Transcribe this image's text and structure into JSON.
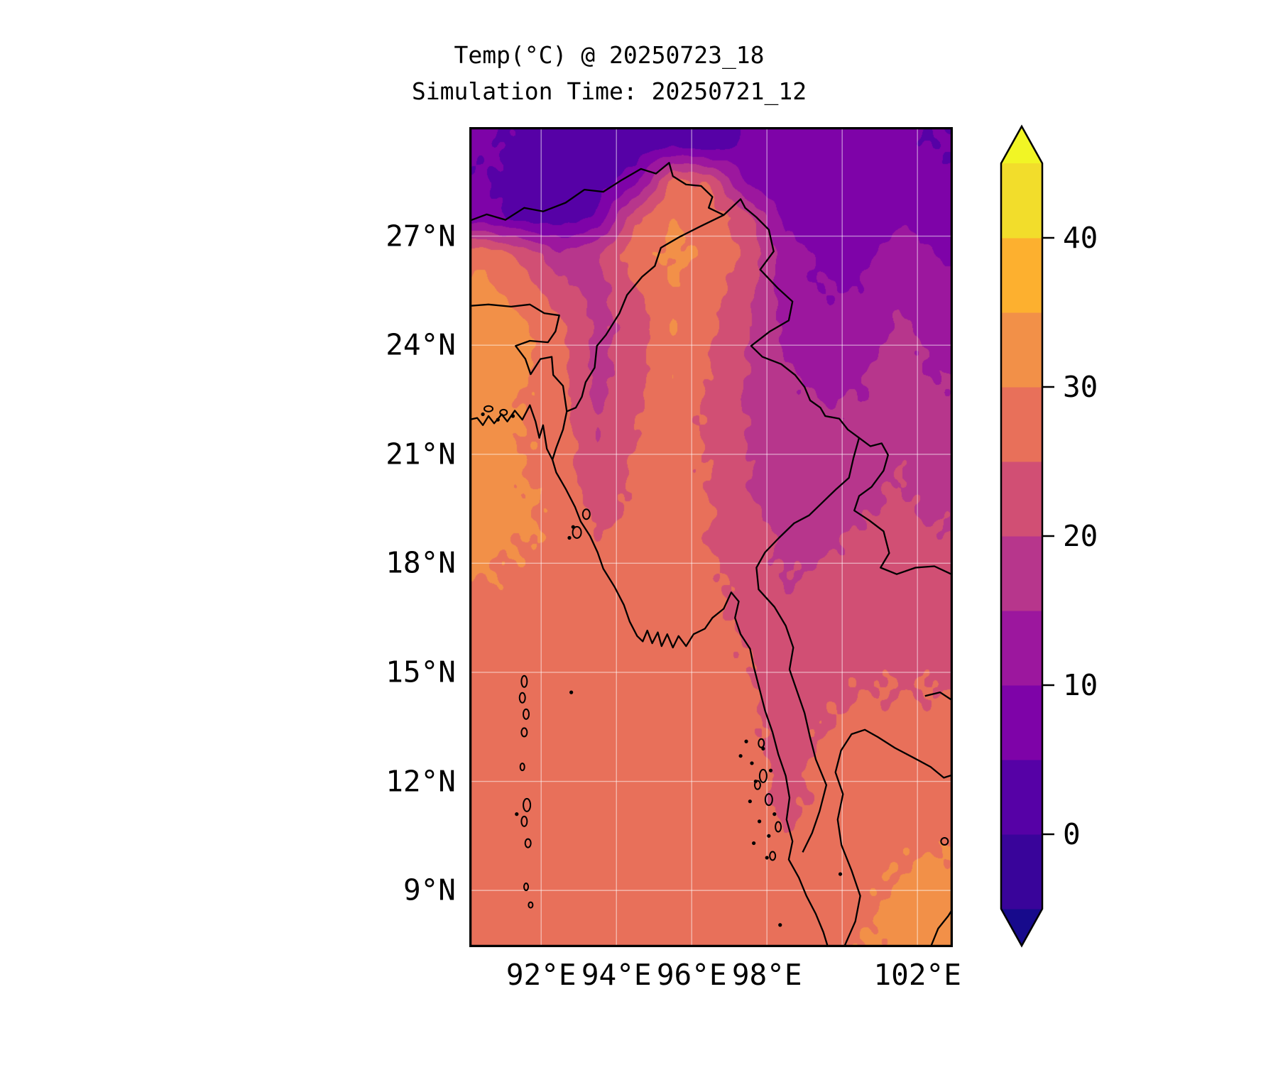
{
  "figure": {
    "title_line1": "Temp(°C) @ 20250723_18",
    "title_line2": "Simulation Time: 20250721_12",
    "background": "#ffffff"
  },
  "axes": {
    "x_ticks": [
      {
        "label": "92°E",
        "lon": 92
      },
      {
        "label": "94°E",
        "lon": 94
      },
      {
        "label": "96°E",
        "lon": 96
      },
      {
        "label": "98°E",
        "lon": 98
      },
      {
        "label": "102°E",
        "lon": 102
      }
    ],
    "x_gridlines": [
      92,
      94,
      96,
      98,
      100,
      102
    ],
    "y_ticks": [
      {
        "label": "27°N",
        "lat": 27
      },
      {
        "label": "24°N",
        "lat": 24
      },
      {
        "label": "21°N",
        "lat": 21
      },
      {
        "label": "18°N",
        "lat": 18
      },
      {
        "label": "15°N",
        "lat": 15
      },
      {
        "label": "12°N",
        "lat": 12
      },
      {
        "label": "9°N",
        "lat": 9
      }
    ],
    "y_gridlines": [
      27,
      24,
      21,
      18,
      15,
      12,
      9
    ],
    "gridline_color": "rgba(255,255,255,0.5)",
    "frame_color": "#000000"
  },
  "colorbar": {
    "tick_labels": [
      {
        "label": "40",
        "value": 40
      },
      {
        "label": "30",
        "value": 30
      },
      {
        "label": "20",
        "value": 20
      },
      {
        "label": "10",
        "value": 10
      },
      {
        "label": "0",
        "value": 0
      }
    ],
    "levels": [
      -5,
      0,
      5,
      10,
      15,
      20,
      25,
      30,
      35,
      40,
      45
    ],
    "colors": [
      "#39049a",
      "#5601a6",
      "#7e03a8",
      "#9c179e",
      "#b7368c",
      "#d14f74",
      "#e8705a",
      "#f29048",
      "#fdb02f",
      "#f2dd2b"
    ],
    "under_color": "#170a8c",
    "over_color": "#f1f525",
    "outline_color": "#000000"
  },
  "chart_data": {
    "type": "filled_contour_map",
    "variable": "Temp (°C)",
    "valid_time": "20250723_18",
    "simulation_time": "20250721_12",
    "lon_range": [
      90.09,
      102.94
    ],
    "lat_range": [
      7.44,
      30.0
    ],
    "levels": [
      -5,
      0,
      5,
      10,
      15,
      20,
      25,
      30,
      35,
      40,
      45
    ],
    "grid_lon": [
      90.5,
      91.5,
      92.5,
      93.5,
      94.5,
      95.5,
      96.5,
      97.5,
      98.5,
      99.5,
      100.5,
      101.5,
      102.5
    ],
    "grid_lat": [
      29.5,
      28.5,
      27.5,
      26.5,
      25.5,
      24.5,
      23.5,
      22.5,
      21.5,
      20.5,
      19.5,
      18.5,
      17.5,
      16.5,
      15.5,
      14.5,
      13.5,
      12.5,
      11.5,
      10.5,
      9.5,
      8.5,
      7.5
    ],
    "values": [
      [
        6,
        4,
        2,
        1,
        2,
        4,
        2,
        6,
        7,
        7,
        6,
        6,
        5
      ],
      [
        5,
        3,
        2,
        3,
        8,
        27,
        24,
        8,
        6,
        7,
        7,
        7,
        6
      ],
      [
        7,
        3,
        2,
        6,
        24,
        30,
        28,
        22,
        8,
        8,
        8,
        9,
        8
      ],
      [
        29,
        24,
        16,
        20,
        28,
        31,
        29,
        24,
        12,
        9,
        9,
        12,
        10
      ],
      [
        31,
        28,
        22,
        18,
        24,
        30,
        27,
        22,
        12,
        10,
        10,
        14,
        11
      ],
      [
        34,
        31,
        26,
        19,
        22,
        30,
        26,
        20,
        14,
        12,
        12,
        16,
        13
      ],
      [
        34,
        31,
        27,
        18,
        23,
        30,
        25,
        20,
        15,
        13,
        14,
        17,
        14
      ],
      [
        32,
        30,
        27,
        19,
        24,
        28,
        24,
        19,
        16,
        15,
        15,
        18,
        16
      ],
      [
        32,
        30,
        28,
        20,
        25,
        28,
        24,
        20,
        17,
        16,
        17,
        19,
        17
      ],
      [
        32,
        30,
        28,
        21,
        26,
        27,
        25,
        20,
        17,
        17,
        18,
        20,
        18
      ],
      [
        32,
        31,
        29,
        23,
        26,
        27,
        25,
        21,
        18,
        18,
        19,
        21,
        19
      ],
      [
        31,
        30,
        29,
        26,
        27,
        26,
        25,
        22,
        19,
        19,
        21,
        22,
        21
      ],
      [
        30,
        29,
        28,
        28,
        27,
        27,
        26,
        23,
        20,
        21,
        22,
        23,
        22
      ],
      [
        28,
        28,
        28,
        28,
        28,
        27,
        26,
        24,
        21,
        22,
        23,
        23,
        23
      ],
      [
        28,
        28,
        28,
        28,
        28,
        28,
        27,
        25,
        22,
        23,
        24,
        24,
        24
      ],
      [
        28,
        28,
        28,
        28,
        28,
        28,
        28,
        26,
        22,
        24,
        25,
        25,
        25
      ],
      [
        28,
        28,
        28,
        28,
        28,
        28,
        28,
        26,
        23,
        25,
        26,
        26,
        26
      ],
      [
        28,
        28,
        28,
        28,
        28,
        28,
        28,
        27,
        23,
        26,
        27,
        27,
        27
      ],
      [
        28,
        28,
        28,
        28,
        28,
        28,
        28,
        27,
        24,
        26,
        27,
        28,
        28
      ],
      [
        28,
        28,
        28,
        28,
        28,
        28,
        28,
        28,
        25,
        27,
        28,
        29,
        29
      ],
      [
        28,
        28,
        28,
        28,
        28,
        28,
        28,
        28,
        26,
        27,
        29,
        30,
        31
      ],
      [
        28,
        28,
        28,
        28,
        28,
        28,
        28,
        28,
        27,
        28,
        29,
        31,
        32
      ],
      [
        28,
        28,
        28,
        28,
        28,
        28,
        28,
        28,
        28,
        29,
        30,
        31,
        31
      ]
    ],
    "coastlines": [
      [
        [
          90.09,
          21.95
        ],
        [
          90.3,
          22.0
        ],
        [
          90.45,
          21.8
        ],
        [
          90.6,
          22.05
        ],
        [
          90.75,
          21.85
        ],
        [
          90.95,
          22.1
        ],
        [
          91.1,
          21.9
        ],
        [
          91.3,
          22.2
        ],
        [
          91.5,
          21.95
        ],
        [
          91.7,
          22.35
        ],
        [
          91.85,
          21.9
        ],
        [
          91.95,
          21.45
        ],
        [
          92.05,
          21.8
        ],
        [
          92.15,
          21.15
        ],
        [
          92.3,
          20.85
        ],
        [
          92.4,
          20.5
        ],
        [
          92.65,
          20.05
        ],
        [
          92.9,
          19.55
        ],
        [
          93.05,
          19.15
        ],
        [
          93.3,
          18.75
        ],
        [
          93.5,
          18.3
        ],
        [
          93.65,
          17.85
        ],
        [
          93.95,
          17.35
        ],
        [
          94.2,
          16.85
        ],
        [
          94.35,
          16.4
        ],
        [
          94.55,
          16.0
        ],
        [
          94.7,
          15.85
        ],
        [
          94.82,
          16.15
        ],
        [
          94.95,
          15.8
        ],
        [
          95.1,
          16.1
        ],
        [
          95.2,
          15.72
        ],
        [
          95.35,
          16.05
        ],
        [
          95.5,
          15.68
        ],
        [
          95.65,
          16.0
        ],
        [
          95.85,
          15.72
        ],
        [
          96.05,
          16.05
        ],
        [
          96.35,
          16.2
        ],
        [
          96.55,
          16.5
        ],
        [
          96.85,
          16.75
        ],
        [
          97.05,
          17.2
        ],
        [
          97.25,
          16.95
        ],
        [
          97.15,
          16.5
        ],
        [
          97.3,
          16.05
        ],
        [
          97.55,
          15.65
        ],
        [
          97.65,
          15.15
        ],
        [
          97.8,
          14.55
        ],
        [
          97.95,
          13.95
        ],
        [
          98.15,
          13.35
        ],
        [
          98.3,
          12.75
        ],
        [
          98.5,
          12.15
        ],
        [
          98.6,
          11.55
        ],
        [
          98.52,
          10.95
        ],
        [
          98.68,
          10.35
        ],
        [
          98.58,
          9.85
        ],
        [
          98.85,
          9.35
        ],
        [
          99.05,
          8.85
        ],
        [
          99.3,
          8.35
        ],
        [
          99.5,
          7.85
        ],
        [
          99.62,
          7.44
        ]
      ],
      [
        [
          100.05,
          7.44
        ],
        [
          100.35,
          8.15
        ],
        [
          100.48,
          8.85
        ],
        [
          100.25,
          9.55
        ],
        [
          99.98,
          10.25
        ],
        [
          99.88,
          10.95
        ],
        [
          100.02,
          11.65
        ],
        [
          99.82,
          12.25
        ],
        [
          99.97,
          12.85
        ],
        [
          100.25,
          13.3
        ],
        [
          100.6,
          13.42
        ],
        [
          100.95,
          13.22
        ],
        [
          101.4,
          12.92
        ],
        [
          101.9,
          12.65
        ],
        [
          102.35,
          12.4
        ],
        [
          102.7,
          12.1
        ],
        [
          102.94,
          12.18
        ]
      ],
      [
        [
          102.35,
          7.44
        ],
        [
          102.55,
          7.95
        ],
        [
          102.82,
          8.3
        ],
        [
          102.94,
          8.5
        ]
      ]
    ],
    "borders": [
      [
        [
          90.09,
          27.42
        ],
        [
          90.55,
          27.6
        ],
        [
          91.05,
          27.45
        ],
        [
          91.55,
          27.78
        ],
        [
          92.05,
          27.68
        ],
        [
          92.65,
          27.92
        ],
        [
          93.15,
          28.28
        ],
        [
          93.65,
          28.22
        ],
        [
          94.15,
          28.55
        ],
        [
          94.65,
          28.85
        ],
        [
          95.05,
          28.72
        ],
        [
          95.4,
          29.02
        ],
        [
          95.5,
          28.65
        ],
        [
          95.85,
          28.42
        ],
        [
          96.25,
          28.38
        ],
        [
          96.55,
          28.08
        ],
        [
          96.45,
          27.78
        ],
        [
          96.85,
          27.58
        ],
        [
          97.3,
          28.02
        ],
        [
          97.42,
          27.78
        ],
        [
          97.72,
          27.52
        ],
        [
          98.05,
          27.18
        ],
        [
          98.18,
          26.58
        ],
        [
          97.82,
          26.08
        ],
        [
          98.28,
          25.58
        ],
        [
          98.68,
          25.2
        ],
        [
          98.58,
          24.68
        ],
        [
          98.08,
          24.38
        ],
        [
          97.58,
          23.98
        ],
        [
          97.88,
          23.68
        ],
        [
          98.38,
          23.48
        ],
        [
          98.75,
          23.18
        ],
        [
          99.0,
          22.85
        ],
        [
          99.15,
          22.48
        ],
        [
          99.42,
          22.28
        ],
        [
          99.55,
          22.05
        ],
        [
          99.92,
          21.98
        ],
        [
          100.15,
          21.68
        ],
        [
          100.45,
          21.45
        ],
        [
          100.75,
          21.22
        ],
        [
          101.05,
          21.3
        ],
        [
          101.22,
          20.98
        ],
        [
          101.1,
          20.55
        ],
        [
          100.78,
          20.1
        ],
        [
          100.45,
          19.85
        ],
        [
          100.32,
          19.45
        ],
        [
          100.72,
          19.18
        ],
        [
          101.1,
          18.88
        ],
        [
          101.25,
          18.28
        ],
        [
          101.02,
          17.88
        ],
        [
          101.45,
          17.7
        ],
        [
          101.95,
          17.88
        ],
        [
          102.45,
          17.92
        ],
        [
          102.94,
          17.68
        ]
      ],
      [
        [
          96.85,
          27.58
        ],
        [
          96.25,
          27.28
        ],
        [
          95.68,
          26.98
        ],
        [
          95.18,
          26.68
        ],
        [
          95.02,
          26.18
        ],
        [
          94.68,
          25.88
        ],
        [
          94.28,
          25.38
        ],
        [
          94.08,
          24.88
        ],
        [
          93.72,
          24.28
        ],
        [
          93.48,
          23.98
        ],
        [
          93.42,
          23.38
        ],
        [
          93.18,
          22.98
        ],
        [
          93.08,
          22.58
        ],
        [
          92.92,
          22.28
        ],
        [
          92.68,
          22.18
        ],
        [
          92.58,
          21.68
        ],
        [
          92.4,
          21.18
        ],
        [
          92.3,
          20.85
        ]
      ],
      [
        [
          90.09,
          25.08
        ],
        [
          90.6,
          25.12
        ],
        [
          91.2,
          25.06
        ],
        [
          91.7,
          25.12
        ],
        [
          92.08,
          24.88
        ],
        [
          92.48,
          24.82
        ],
        [
          92.38,
          24.38
        ],
        [
          92.18,
          24.08
        ],
        [
          91.7,
          24.12
        ],
        [
          91.32,
          23.98
        ],
        [
          91.58,
          23.62
        ],
        [
          91.72,
          23.2
        ],
        [
          91.98,
          23.62
        ],
        [
          92.28,
          23.68
        ],
        [
          92.32,
          23.18
        ],
        [
          92.58,
          22.88
        ],
        [
          92.68,
          22.18
        ]
      ],
      [
        [
          100.45,
          21.45
        ],
        [
          100.3,
          20.9
        ],
        [
          100.18,
          20.35
        ],
        [
          99.82,
          20.02
        ],
        [
          99.52,
          19.72
        ],
        [
          99.12,
          19.32
        ],
        [
          98.72,
          19.1
        ],
        [
          98.32,
          18.7
        ],
        [
          97.95,
          18.3
        ],
        [
          97.72,
          17.88
        ],
        [
          97.78,
          17.28
        ],
        [
          98.2,
          16.8
        ],
        [
          98.5,
          16.28
        ],
        [
          98.7,
          15.68
        ],
        [
          98.6,
          15.08
        ],
        [
          98.8,
          14.48
        ],
        [
          99.0,
          13.88
        ],
        [
          99.15,
          13.2
        ],
        [
          99.3,
          12.6
        ],
        [
          99.58,
          11.9
        ],
        [
          99.4,
          11.18
        ],
        [
          99.2,
          10.58
        ],
        [
          98.95,
          10.05
        ]
      ],
      [
        [
          102.2,
          14.35
        ],
        [
          102.6,
          14.45
        ],
        [
          102.94,
          14.22
        ]
      ]
    ],
    "islands": [
      [
        91.55,
        14.75,
        4,
        8
      ],
      [
        91.5,
        14.3,
        4,
        7
      ],
      [
        91.6,
        13.85,
        4,
        7
      ],
      [
        91.55,
        13.35,
        4,
        6
      ],
      [
        91.5,
        12.4,
        3,
        5
      ],
      [
        91.62,
        11.35,
        5,
        9
      ],
      [
        91.55,
        10.9,
        4,
        7
      ],
      [
        91.65,
        10.3,
        4,
        6
      ],
      [
        91.6,
        9.1,
        3,
        5
      ],
      [
        91.72,
        8.6,
        3,
        4
      ],
      [
        97.9,
        12.15,
        5,
        9
      ],
      [
        98.05,
        11.5,
        5,
        8
      ],
      [
        97.75,
        11.9,
        4,
        6
      ],
      [
        98.3,
        10.75,
        4,
        7
      ],
      [
        98.15,
        9.95,
        4,
        6
      ],
      [
        97.85,
        13.05,
        4,
        6
      ],
      [
        92.95,
        18.85,
        6,
        8
      ],
      [
        93.2,
        19.35,
        5,
        7
      ],
      [
        90.6,
        22.25,
        6,
        4
      ],
      [
        91.0,
        22.15,
        5,
        4
      ],
      [
        102.72,
        10.35,
        5,
        5
      ]
    ],
    "specks": [
      [
        90.45,
        22.1
      ],
      [
        90.85,
        21.95
      ],
      [
        91.25,
        22.05
      ],
      [
        92.85,
        19.0
      ],
      [
        92.75,
        18.7
      ],
      [
        92.8,
        14.45
      ],
      [
        91.35,
        11.1
      ],
      [
        97.45,
        13.1
      ],
      [
        97.6,
        12.5
      ],
      [
        97.7,
        12.0
      ],
      [
        97.55,
        11.45
      ],
      [
        97.8,
        10.9
      ],
      [
        97.65,
        10.3
      ],
      [
        98.0,
        9.9
      ],
      [
        97.9,
        12.9
      ],
      [
        98.1,
        12.3
      ],
      [
        97.3,
        12.7
      ],
      [
        98.2,
        11.1
      ],
      [
        98.05,
        10.5
      ],
      [
        98.35,
        8.05
      ],
      [
        99.95,
        9.45
      ]
    ]
  }
}
